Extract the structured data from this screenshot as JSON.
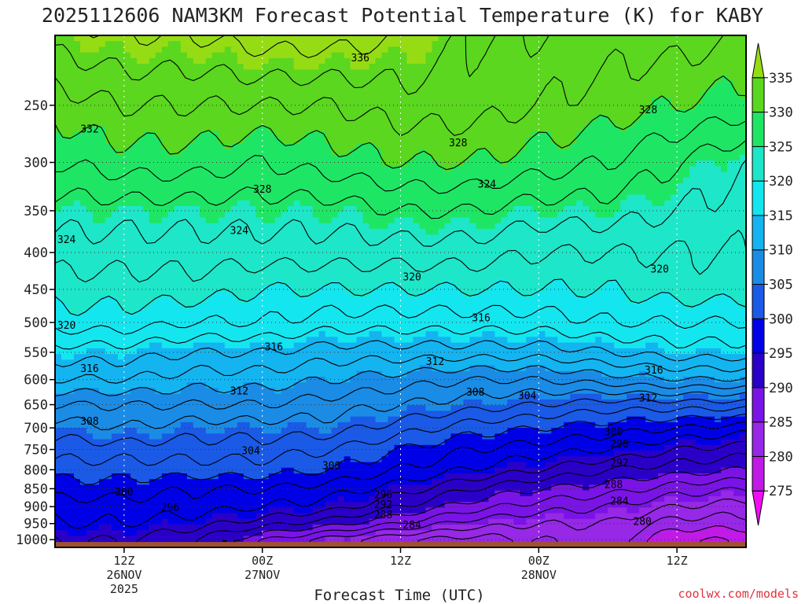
{
  "title": "2025112606 NAM3KM Forecast Potential Temperature (K) for KABY",
  "credit": "coolwx.com/models",
  "chart_data": {
    "type": "contour",
    "title": "2025112606 NAM3KM Forecast Potential Temperature (K) for KABY",
    "xlabel": "Forecast Time (UTC)",
    "ylabel": "",
    "x_range_hours": [
      0,
      60
    ],
    "y_range_hPa": [
      1025,
      200
    ],
    "y_scale": "log-pressure",
    "y_ticks": [
      250,
      300,
      350,
      400,
      450,
      500,
      550,
      600,
      650,
      700,
      750,
      800,
      850,
      900,
      950,
      1000
    ],
    "y_tick_labels": [
      "250",
      "300",
      "350",
      "400",
      "450",
      "500",
      "550",
      "600",
      "650",
      "700",
      "750",
      "800",
      "850",
      "900",
      "950",
      "1000"
    ],
    "x_ticks": [
      {
        "hour": 6,
        "lines": [
          "12Z",
          "26NOV",
          "2025"
        ]
      },
      {
        "hour": 18,
        "lines": [
          "00Z",
          "27NOV"
        ]
      },
      {
        "hour": 30,
        "lines": [
          "12Z"
        ]
      },
      {
        "hour": 42,
        "lines": [
          "00Z",
          "28NOV"
        ]
      },
      {
        "hour": 54,
        "lines": [
          "12Z"
        ]
      }
    ],
    "colorbar": {
      "levels": [
        275,
        280,
        285,
        290,
        295,
        300,
        305,
        310,
        315,
        320,
        325,
        330,
        335
      ],
      "labels": [
        "275",
        "280",
        "285",
        "290",
        "295",
        "300",
        "305",
        "310",
        "315",
        "320",
        "325",
        "330",
        "335"
      ],
      "min": 272.5,
      "max": 337.5
    },
    "levels_hPa": [
      1000,
      950,
      900,
      850,
      800,
      750,
      700,
      650,
      600,
      550,
      500,
      450,
      400,
      350,
      300,
      250,
      200
    ],
    "time_hours": [
      0,
      6,
      12,
      18,
      24,
      30,
      36,
      42,
      48,
      54,
      60
    ],
    "theta_K": [
      [
        294,
        294,
        292,
        288,
        285,
        282,
        281,
        282,
        283,
        278,
        278
      ],
      [
        296,
        296,
        295,
        293,
        291,
        288,
        285,
        284,
        284,
        281,
        281
      ],
      [
        297,
        297,
        297,
        296,
        295,
        292,
        289,
        287,
        286,
        284,
        283
      ],
      [
        299,
        299,
        298,
        298,
        297,
        295,
        292,
        290,
        289,
        287,
        286
      ],
      [
        301,
        301,
        301,
        301,
        300,
        298,
        296,
        294,
        292,
        291,
        290
      ],
      [
        303,
        303,
        303,
        303,
        302,
        300,
        298,
        297,
        296,
        294,
        293
      ],
      [
        305,
        306,
        305,
        305,
        305,
        303,
        301,
        300,
        299,
        298,
        297
      ],
      [
        308,
        308,
        308,
        308,
        307,
        306,
        305,
        304,
        303,
        303,
        303
      ],
      [
        312,
        312,
        311,
        311,
        310,
        309,
        308,
        308,
        309,
        310,
        310
      ],
      [
        315,
        315,
        314,
        314,
        313,
        313,
        313,
        313,
        314,
        315,
        315
      ],
      [
        319,
        319,
        318,
        318,
        317,
        317,
        317,
        317,
        318,
        318,
        318
      ],
      [
        321,
        321,
        321,
        320,
        320,
        320,
        320,
        320,
        320,
        321,
        321
      ],
      [
        323,
        323,
        323,
        323,
        323,
        323,
        323,
        322,
        322,
        322,
        322
      ],
      [
        325,
        325,
        325,
        325,
        325,
        326,
        326,
        325,
        325,
        324,
        323
      ],
      [
        328,
        329,
        329,
        328,
        329,
        330,
        330,
        329,
        328,
        326,
        324
      ],
      [
        331,
        332,
        332,
        332,
        332,
        333,
        333,
        332,
        331,
        330,
        329
      ],
      [
        335,
        336,
        336,
        337,
        337,
        336,
        334,
        334,
        333,
        333,
        332
      ]
    ],
    "contour_interval_K": 2,
    "contour_labels": [
      {
        "value": "336",
        "hour": 26.5,
        "hPa": 215
      },
      {
        "value": "332",
        "hour": 3,
        "hPa": 270
      },
      {
        "value": "328",
        "hour": 35,
        "hPa": 282
      },
      {
        "value": "328",
        "hour": 51.5,
        "hPa": 254
      },
      {
        "value": "328",
        "hour": 18,
        "hPa": 327
      },
      {
        "value": "324",
        "hour": 37.5,
        "hPa": 322
      },
      {
        "value": "324",
        "hour": 16,
        "hPa": 373
      },
      {
        "value": "324",
        "hour": 1,
        "hPa": 384
      },
      {
        "value": "320",
        "hour": 52.5,
        "hPa": 422
      },
      {
        "value": "320",
        "hour": 31,
        "hPa": 433
      },
      {
        "value": "320",
        "hour": 1,
        "hPa": 505
      },
      {
        "value": "316",
        "hour": 37,
        "hPa": 493
      },
      {
        "value": "316",
        "hour": 19,
        "hPa": 541
      },
      {
        "value": "316",
        "hour": 3,
        "hPa": 580
      },
      {
        "value": "316",
        "hour": 52,
        "hPa": 583
      },
      {
        "value": "312",
        "hour": 33,
        "hPa": 567
      },
      {
        "value": "312",
        "hour": 16,
        "hPa": 623
      },
      {
        "value": "312",
        "hour": 51.5,
        "hPa": 637
      },
      {
        "value": "308",
        "hour": 36.5,
        "hPa": 625
      },
      {
        "value": "308",
        "hour": 3,
        "hPa": 686
      },
      {
        "value": "304",
        "hour": 41,
        "hPa": 632
      },
      {
        "value": "304",
        "hour": 17,
        "hPa": 754
      },
      {
        "value": "300",
        "hour": 48.5,
        "hPa": 710
      },
      {
        "value": "300",
        "hour": 24,
        "hPa": 790
      },
      {
        "value": "300",
        "hour": 6,
        "hPa": 860
      },
      {
        "value": "296",
        "hour": 49,
        "hPa": 738
      },
      {
        "value": "296",
        "hour": 28.5,
        "hPa": 867
      },
      {
        "value": "296",
        "hour": 10,
        "hPa": 903
      },
      {
        "value": "292",
        "hour": 49,
        "hPa": 784
      },
      {
        "value": "292",
        "hour": 28.5,
        "hPa": 895
      },
      {
        "value": "288",
        "hour": 48.5,
        "hPa": 840
      },
      {
        "value": "288",
        "hour": 28.5,
        "hPa": 925
      },
      {
        "value": "284",
        "hour": 49,
        "hPa": 885
      },
      {
        "value": "284",
        "hour": 31,
        "hPa": 955
      },
      {
        "value": "280",
        "hour": 51,
        "hPa": 945
      }
    ],
    "ground_color": "#a0522d"
  }
}
